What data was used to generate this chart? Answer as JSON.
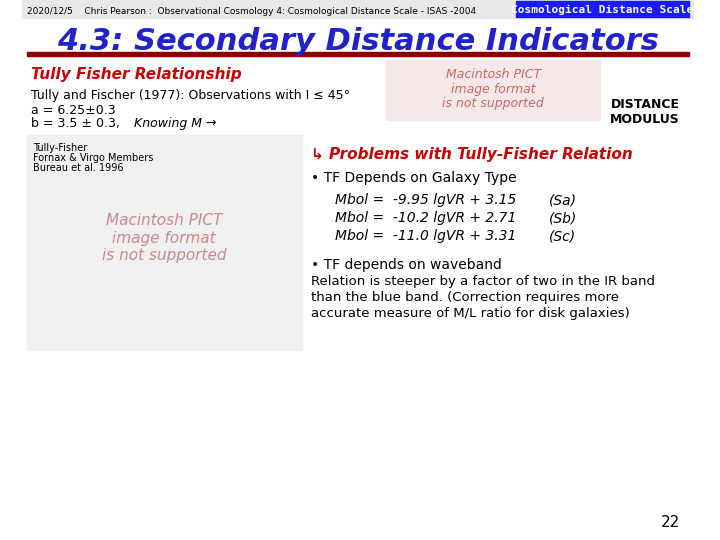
{
  "header_text": "2020/12/5    Chris Pearson :  Observational Cosmology 4: Cosmological Distance Scale - ISAS -2004",
  "header_box_text": "Cosmological Distance Scale",
  "header_box_color": "#1a1aff",
  "title_text": "4.3: Secondary Distance Indicators",
  "title_color": "#2222cc",
  "title_underline_color": "#8B0000",
  "bg_color": "#ffffff",
  "section_title": "Tully Fisher Relationship",
  "section_title_color": "#cc0000",
  "pict_text1": "Macintosh PICT",
  "pict_text2": "image format",
  "pict_text3": "is not supported",
  "pict_color": "#cc6666",
  "tully_label": "Tully-Fisher",
  "fornax_label": "Fornax & Virgo Members",
  "bureau_label": "Bureau et al. 1996",
  "problems_text": "↳ Problems with Tully-Fisher Relation",
  "problems_color": "#cc0000",
  "bullet1": "• TF Depends on Galaxy Type",
  "eq1": "Mbol =  -9.95 lgVR + 3.15",
  "eq1_suffix": "(Sa)",
  "eq2": "Mbol =  -10.2 lgVR + 2.71",
  "eq2_suffix": "(Sb)",
  "eq3": "Mbol =  -11.0 lgVR + 3.31",
  "eq3_suffix": "(Sc)",
  "bullet2_line1": "• TF depends on waveband",
  "bullet2_line2": "Relation is steeper by a factor of two in the IR band",
  "bullet2_line3": "than the blue band. (Correction requires more",
  "bullet2_line4": "accurate measure of M/L ratio for disk galaxies)",
  "distance_modulus": "DISTANCE\nMODULUS",
  "distance_modulus_color": "#000000",
  "tully_text1": "Tully and Fischer (1977): Observations with I ≤ 45°",
  "tully_text2": "a = 6.25±0.3",
  "tully_text3": "b = 3.5 ± 0.3,",
  "knowing_text": "Knowing M →",
  "page_number": "22",
  "header_bg": "#e8e8e8",
  "slide_bg": "#ffffff"
}
